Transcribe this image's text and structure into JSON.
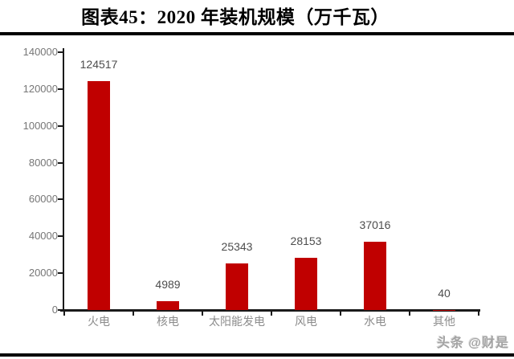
{
  "title": "图表45：2020 年装机规模（万千瓦）",
  "watermark": "头条 @财是",
  "colors": {
    "bar": "#c00000",
    "axis": "#1a1a1a",
    "ytick_label": "#767676",
    "data_label": "#4d4d4d",
    "category_label": "#8c8c8c",
    "rule": "#000000",
    "watermark": "#a3a3a3"
  },
  "chart_data": {
    "type": "bar",
    "title": "图表45：2020 年装机规模（万千瓦）",
    "categories": [
      "火电",
      "核电",
      "太阳能发电",
      "风电",
      "水电",
      "其他"
    ],
    "values": [
      124517,
      4989,
      25343,
      28153,
      37016,
      40
    ],
    "data_labels": [
      "124517",
      "4989",
      "25343",
      "28153",
      "37016",
      "40"
    ],
    "xlabel": "",
    "ylabel": "",
    "ylim": [
      0,
      140000
    ],
    "ytick_step": 20000,
    "ytick_labels": [
      "0",
      "20000",
      "40000",
      "60000",
      "80000",
      "100000",
      "120000",
      "140000"
    ],
    "grid": false,
    "legend": null,
    "bar_color": "#c00000"
  }
}
